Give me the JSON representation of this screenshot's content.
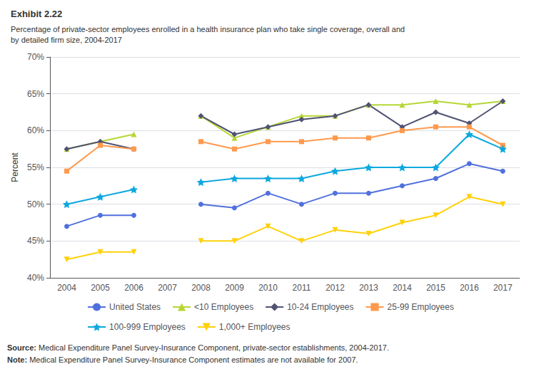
{
  "chart_data": {
    "type": "line",
    "title": "Exhibit 2.22",
    "subtitle": "Percentage of private-sector employees enrolled in a health insurance plan who take single coverage, overall and\nby detailed firm size, 2004-2017",
    "y_label": "Percent",
    "categories": [
      "2004",
      "2005",
      "2006",
      "2007",
      "2008",
      "2009",
      "2010",
      "2011",
      "2012",
      "2013",
      "2014",
      "2015",
      "2016",
      "2017"
    ],
    "series": [
      {
        "name": "United States",
        "marker": "circle",
        "values": [
          47.0,
          48.5,
          48.5,
          null,
          50.0,
          49.5,
          51.5,
          50.0,
          51.5,
          51.5,
          52.5,
          53.5,
          55.5,
          54.5
        ]
      },
      {
        "name": "<10 Employees",
        "marker": "triangle",
        "values": [
          57.5,
          58.5,
          59.5,
          null,
          62.0,
          59.0,
          60.5,
          62.0,
          62.0,
          63.5,
          63.5,
          64.0,
          63.5,
          64.0
        ]
      },
      {
        "name": "10-24 Employees",
        "marker": "diamond",
        "values": [
          57.5,
          58.5,
          57.5,
          null,
          62.0,
          59.5,
          60.5,
          61.5,
          62.0,
          63.5,
          60.5,
          62.5,
          61.0,
          64.0
        ]
      },
      {
        "name": "25-99 Employees",
        "marker": "square",
        "values": [
          54.5,
          58.0,
          57.5,
          null,
          58.5,
          57.5,
          58.5,
          58.5,
          59.0,
          59.0,
          60.0,
          60.5,
          60.5,
          58.0
        ]
      },
      {
        "name": "100-999 Employees",
        "marker": "star",
        "values": [
          50.0,
          51.0,
          52.0,
          null,
          53.0,
          53.5,
          53.5,
          53.5,
          54.5,
          55.0,
          55.0,
          55.0,
          59.5,
          57.5
        ]
      },
      {
        "name": "1,000+ Employees",
        "marker": "triangle_down",
        "values": [
          42.5,
          43.5,
          43.5,
          null,
          45.0,
          45.0,
          47.0,
          45.0,
          46.5,
          46.0,
          47.5,
          48.5,
          51.0,
          50.0
        ]
      }
    ],
    "ylim": [
      40,
      70
    ],
    "yticks": [
      {
        "value": 40,
        "label": "40%"
      },
      {
        "value": 45,
        "label": "45%"
      },
      {
        "value": 50,
        "label": "50%"
      },
      {
        "value": 55,
        "label": "55%"
      },
      {
        "value": 60,
        "label": "60%"
      },
      {
        "value": 65,
        "label": "65%"
      },
      {
        "value": 70,
        "label": "70%"
      }
    ],
    "grid": true,
    "legend": "bottom",
    "annotations": [
      "Source: Medical Expenditure Panel Survey-Insurance Component, private-sector establishments, 2004-2017.",
      "Note: Medical Expenditure Panel Survey-Insurance Component estimates are not available for 2007."
    ]
  }
}
